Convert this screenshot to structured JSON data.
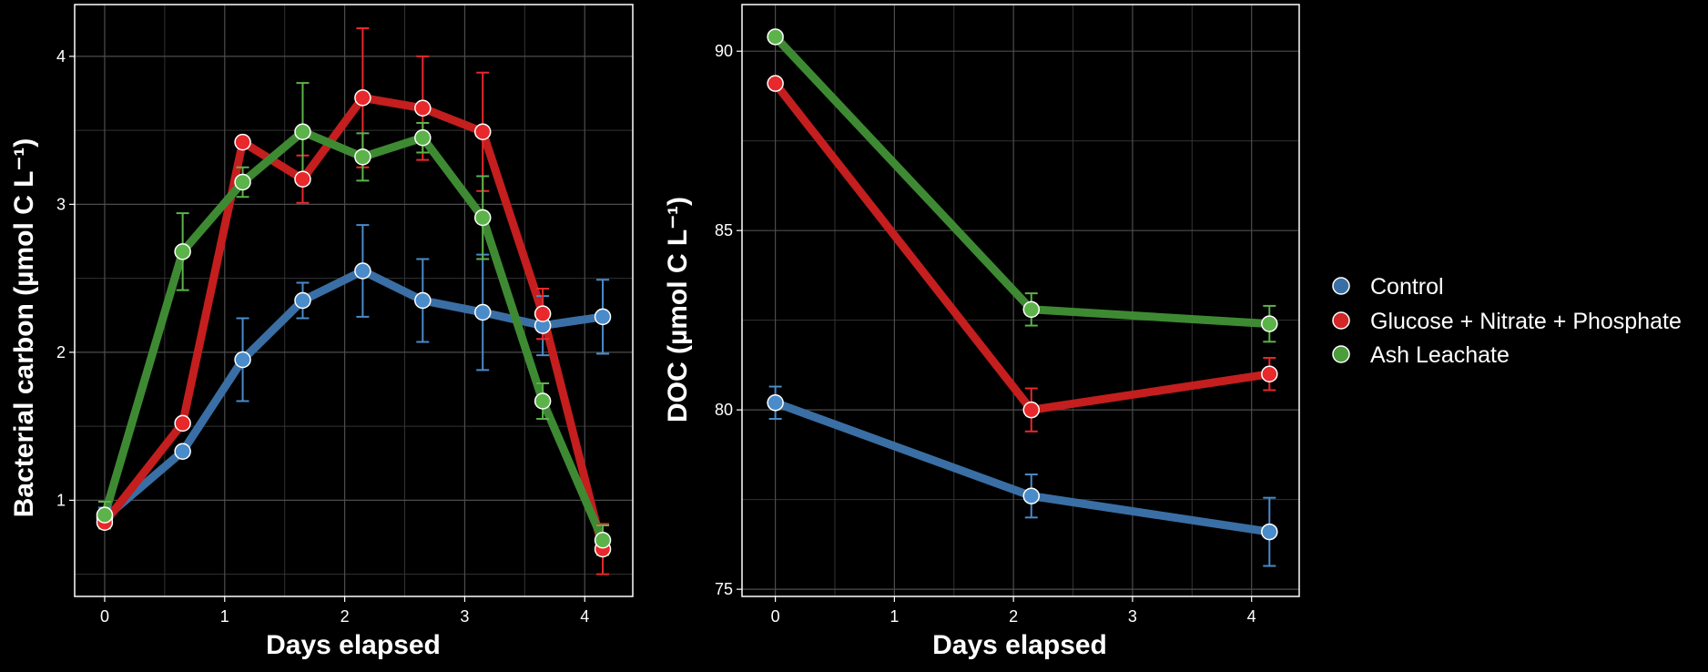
{
  "legend": {
    "entries": [
      {
        "label": "Control",
        "color": "#3a6fa5"
      },
      {
        "label": "Glucose + Nitrate + Phosphate",
        "color": "#d32626"
      },
      {
        "label": "Ash Leachate",
        "color": "#4b9c3a"
      }
    ]
  },
  "chart_data": [
    {
      "type": "line",
      "xlabel": "Days elapsed",
      "ylabel": "Bacterial carbon (µmol C L⁻¹)",
      "xlim": [
        -0.25,
        4.4
      ],
      "ylim": [
        0.35,
        4.35
      ],
      "xticks": [
        0,
        1,
        2,
        3,
        4
      ],
      "xtick_labels": [
        "0",
        "1",
        "2",
        "3",
        "4"
      ],
      "yticks": [
        1,
        2,
        3,
        4
      ],
      "ytick_labels": [
        "1",
        "2",
        "3",
        "4"
      ],
      "grid": true,
      "series": [
        {
          "name": "Control",
          "color": "#3a6fa5",
          "point_color": "#4a8bc9",
          "x": [
            0,
            0.65,
            1.15,
            1.65,
            2.15,
            2.65,
            3.15,
            3.65,
            4.15
          ],
          "y": [
            0.88,
            1.33,
            1.95,
            2.35,
            2.55,
            2.35,
            2.27,
            2.18,
            2.24
          ],
          "err": [
            0.07,
            0.0,
            0.28,
            0.12,
            0.31,
            0.28,
            0.39,
            0.2,
            0.25
          ]
        },
        {
          "name": "Glucose + Nitrate + Phosphate",
          "color": "#c41e1e",
          "point_color": "#e8282b",
          "x": [
            0,
            0.65,
            1.15,
            1.65,
            2.15,
            2.65,
            3.15,
            3.65,
            4.15
          ],
          "y": [
            0.85,
            1.52,
            3.42,
            3.17,
            3.72,
            3.65,
            3.49,
            2.26,
            0.67
          ],
          "err": [
            0.0,
            0.0,
            0.0,
            0.16,
            0.47,
            0.35,
            0.4,
            0.17,
            0.17
          ]
        },
        {
          "name": "Ash Leachate",
          "color": "#3e8a33",
          "point_color": "#5cb34a",
          "x": [
            0,
            0.65,
            1.15,
            1.65,
            2.15,
            2.65,
            3.15,
            3.65,
            4.15
          ],
          "y": [
            0.9,
            2.68,
            3.15,
            3.49,
            3.32,
            3.45,
            2.91,
            1.67,
            0.73
          ],
          "err": [
            0.09,
            0.26,
            0.1,
            0.33,
            0.16,
            0.1,
            0.28,
            0.12,
            0.1
          ]
        }
      ]
    },
    {
      "type": "line",
      "xlabel": "Days elapsed",
      "ylabel": "DOC (µmol C L⁻¹)",
      "xlim": [
        -0.28,
        4.4
      ],
      "ylim": [
        74.8,
        91.3
      ],
      "xticks": [
        0,
        1,
        2,
        3,
        4
      ],
      "xtick_labels": [
        "0",
        "1",
        "2",
        "3",
        "4"
      ],
      "yticks": [
        75,
        80,
        85,
        90
      ],
      "ytick_labels": [
        "75",
        "80",
        "85",
        "90"
      ],
      "grid": true,
      "series": [
        {
          "name": "Control",
          "color": "#3a6fa5",
          "point_color": "#4a8bc9",
          "x": [
            0,
            2.15,
            4.15
          ],
          "y": [
            80.2,
            77.6,
            76.6
          ],
          "err": [
            0.45,
            0.6,
            0.95
          ]
        },
        {
          "name": "Glucose + Nitrate + Phosphate",
          "color": "#c41e1e",
          "point_color": "#e8282b",
          "x": [
            0,
            2.15,
            4.15
          ],
          "y": [
            89.1,
            80.0,
            81.0
          ],
          "err": [
            0.0,
            0.6,
            0.45
          ]
        },
        {
          "name": "Ash Leachate",
          "color": "#3e8a33",
          "point_color": "#5cb34a",
          "x": [
            0,
            2.15,
            4.15
          ],
          "y": [
            90.4,
            82.8,
            82.4
          ],
          "err": [
            0.0,
            0.45,
            0.5
          ]
        }
      ]
    }
  ]
}
